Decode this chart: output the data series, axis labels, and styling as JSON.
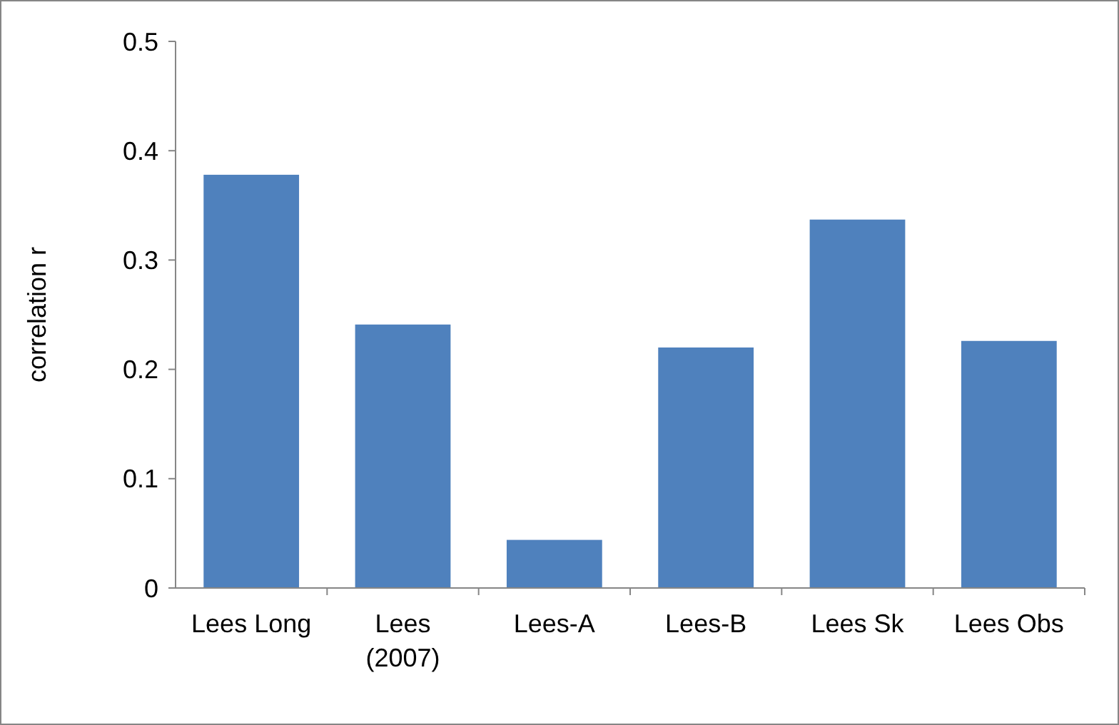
{
  "chart_data": {
    "type": "bar",
    "ylabel": "correlation r",
    "categories": [
      "Lees Long",
      "Lees\n(2007)",
      "Lees-A",
      "Lees-B",
      "Lees Sk",
      "Lees Obs"
    ],
    "values": [
      0.378,
      0.241,
      0.044,
      0.22,
      0.337,
      0.226
    ],
    "color": "#4f81bd",
    "ylim": [
      0,
      0.5
    ],
    "yticks": [
      0,
      0.1,
      0.2,
      0.3,
      0.4,
      0.5
    ]
  }
}
